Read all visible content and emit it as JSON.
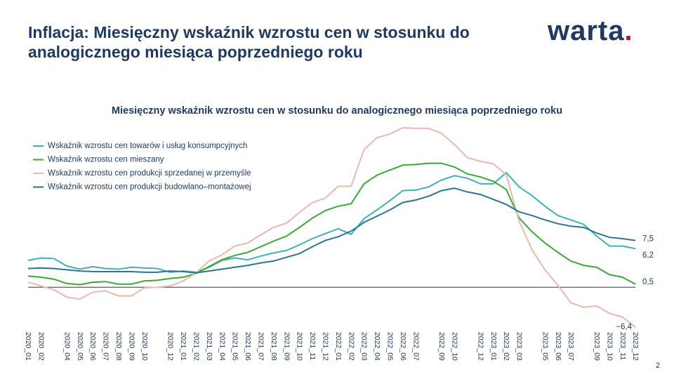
{
  "header": {
    "title_lines": [
      "Inflacja: Miesięczny wskaźnik wzrostu cen w stosunku do",
      "analogicznego miesiąca poprzedniego roku"
    ],
    "logo": "warta",
    "logo_dot": ".",
    "page_number": "2"
  },
  "chart_data": {
    "type": "line",
    "title": "Miesięczny wskaźnik wzrostu cen w stosunku do analogicznego miesiąca poprzedniego roku",
    "categories": [
      "2020_01",
      "2020_02",
      null,
      "2020_04",
      "2020_05",
      "2020_06",
      "2020_07",
      "2020_08",
      "2020_09",
      "2020_10",
      null,
      "2020_12",
      "2021_01",
      "2021_02",
      "2021_03",
      "2021_04",
      "2021_05",
      "2021_06",
      "2021_07",
      "2021_08",
      "2021_09",
      "2021_10",
      "2021_11",
      "2021_12",
      "2022_01",
      "2022_02",
      "2022_03",
      "2022_04",
      "2022_05",
      "2022_06",
      "2022_07",
      null,
      "2022_09",
      "2022_10",
      null,
      "2022_12",
      "2023_01",
      "2023_02",
      "2023_03",
      null,
      "2023_05",
      "2023_06",
      "2023_07",
      null,
      "2023_09",
      "2023_10",
      "2023_11",
      "2023_12"
    ],
    "zero_line": true,
    "legend": "upper left",
    "series": [
      {
        "name": "Wskaźnik wzrostu cen towarów i usług konsumpcyjnych",
        "color": "#3fb0bd",
        "end_label": "6,2",
        "values": [
          4.3,
          4.7,
          4.6,
          3.4,
          2.9,
          3.3,
          3.0,
          2.9,
          3.2,
          3.1,
          3.0,
          2.4,
          2.6,
          2.4,
          3.2,
          4.3,
          4.7,
          4.4,
          5.0,
          5.5,
          5.9,
          6.8,
          7.8,
          8.6,
          9.4,
          8.5,
          11.0,
          12.4,
          13.9,
          15.5,
          15.6,
          16.1,
          17.2,
          17.9,
          17.5,
          16.6,
          16.6,
          18.4,
          16.1,
          14.7,
          13.0,
          11.5,
          10.8,
          10.1,
          8.2,
          6.6,
          6.6,
          6.2
        ]
      },
      {
        "name": "Wskaźnik wzrostu cen mieszany",
        "color": "#3aa935",
        "end_label": "0,5",
        "values": [
          1.8,
          1.6,
          1.3,
          0.6,
          0.4,
          0.8,
          0.9,
          0.5,
          0.5,
          1.0,
          1.1,
          1.4,
          1.6,
          2.2,
          3.3,
          4.4,
          5.1,
          5.6,
          6.5,
          7.4,
          8.2,
          9.6,
          11.1,
          12.3,
          13.0,
          13.4,
          16.6,
          18.0,
          18.8,
          19.6,
          19.7,
          19.9,
          19.9,
          19.3,
          18.2,
          17.7,
          17.0,
          15.7,
          11.1,
          8.9,
          7.1,
          5.6,
          4.2,
          3.5,
          3.2,
          2.0,
          1.6,
          0.5
        ]
      },
      {
        "name": "Wskaźnik wzrostu cen produkcji sprzedanej w przemyśle",
        "color": "#e9b8b0",
        "end_label": "−6,4",
        "values": [
          0.8,
          0.2,
          -0.4,
          -1.6,
          -1.9,
          -0.8,
          -0.6,
          -1.4,
          -1.4,
          -0.1,
          0.0,
          0.2,
          1.0,
          2.3,
          4.2,
          5.2,
          6.6,
          7.1,
          8.4,
          9.6,
          10.3,
          12.0,
          13.6,
          14.3,
          16.2,
          16.2,
          22.1,
          24.0,
          24.6,
          25.6,
          25.5,
          25.5,
          24.7,
          22.9,
          20.8,
          20.2,
          19.8,
          18.1,
          10.6,
          6.0,
          2.8,
          0.3,
          -2.5,
          -3.2,
          -3.0,
          -4.2,
          -4.8,
          -6.4
        ]
      },
      {
        "name": "Wskaźnik wzrostu cen produkcji budowlano–montażowej",
        "color": "#2e7390",
        "end_label": "7,5",
        "values": [
          3.0,
          3.1,
          3.0,
          2.8,
          2.6,
          2.5,
          2.5,
          2.5,
          2.5,
          2.4,
          2.4,
          2.6,
          2.5,
          2.3,
          2.6,
          2.9,
          3.2,
          3.5,
          3.9,
          4.2,
          4.8,
          5.4,
          6.5,
          7.5,
          8.1,
          9.0,
          10.4,
          11.4,
          12.4,
          13.6,
          14.0,
          14.6,
          15.5,
          15.9,
          15.3,
          14.9,
          14.1,
          13.3,
          12.1,
          11.5,
          10.8,
          10.2,
          9.8,
          9.6,
          8.7,
          8.0,
          7.8,
          7.5
        ]
      }
    ]
  }
}
